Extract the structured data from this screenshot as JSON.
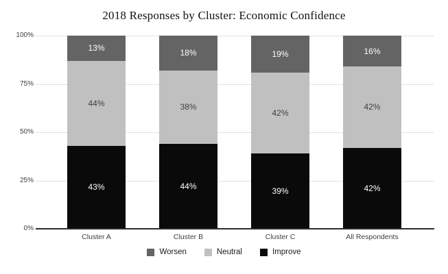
{
  "title": "2018 Responses by Cluster: Economic Confidence",
  "colors": {
    "background": "#ffffff",
    "gridline": "#e2e2e2",
    "axis_line": "#2b2b2b",
    "tick_text": "#3d3d3d",
    "title_text": "#111111"
  },
  "chart_data": {
    "type": "bar",
    "stacked": true,
    "title": "2018 Responses by Cluster: Economic Confidence",
    "xlabel": "",
    "ylabel": "",
    "ylim": [
      0,
      100
    ],
    "grid": true,
    "legend_position": "bottom",
    "categories": [
      "Cluster A",
      "Cluster B",
      "Cluster C",
      "All Respondents"
    ],
    "series": [
      {
        "name": "Improve",
        "color": "#0a0a0a",
        "label_color": "#ffffff",
        "values": [
          43,
          44,
          39,
          42
        ]
      },
      {
        "name": "Neutral",
        "color": "#c0c0c0",
        "label_color": "#404040",
        "values": [
          44,
          38,
          42,
          42
        ]
      },
      {
        "name": "Worsen",
        "color": "#646464",
        "label_color": "#ffffff",
        "values": [
          13,
          18,
          19,
          16
        ]
      }
    ],
    "value_label_suffix": "%",
    "y_ticks": [
      "0%",
      "25%",
      "50%",
      "75%",
      "100%"
    ],
    "y_tick_positions": [
      0,
      25,
      50,
      75,
      100
    ],
    "legend": [
      "Worsen",
      "Neutral",
      "Improve"
    ]
  }
}
